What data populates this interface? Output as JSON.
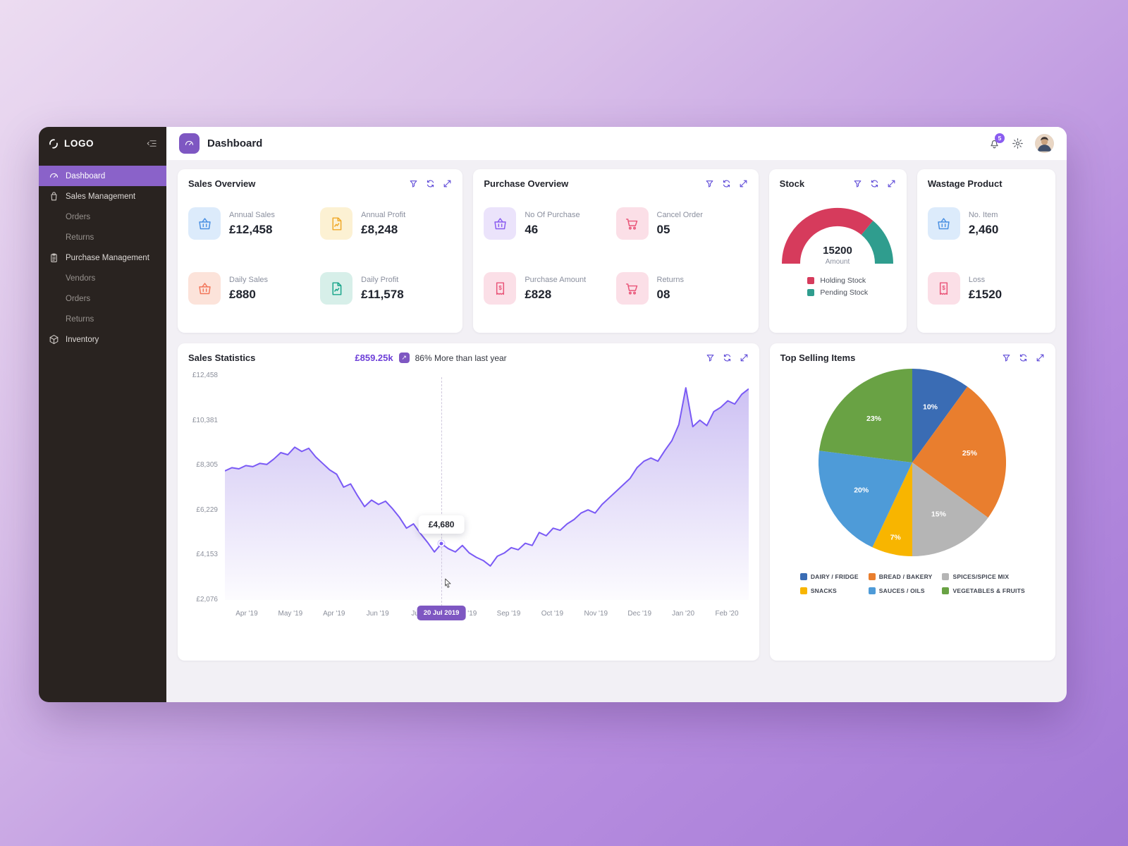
{
  "app": {
    "logo_text": "LOGO"
  },
  "sidebar": {
    "items": [
      {
        "label": "Dashboard",
        "icon": "speedometer-icon",
        "active": true
      },
      {
        "label": "Sales Management",
        "icon": "shopping-bag-icon"
      },
      {
        "label": "Orders",
        "sub": true
      },
      {
        "label": "Returns",
        "sub": true
      },
      {
        "label": "Purchase Management",
        "icon": "clipboard-icon"
      },
      {
        "label": "Vendors",
        "sub": true
      },
      {
        "label": "Orders",
        "sub": true
      },
      {
        "label": "Returns",
        "sub": true
      },
      {
        "label": "Inventory",
        "icon": "box-icon"
      }
    ]
  },
  "header": {
    "title": "Dashboard",
    "notification_count": "5"
  },
  "cards": {
    "sales_overview": {
      "title": "Sales Overview",
      "stats": [
        {
          "label": "Annual Sales",
          "value": "£12,458",
          "icon": "basket-icon",
          "tile": "blue"
        },
        {
          "label": "Annual Profit",
          "value": "£8,248",
          "icon": "document-chart-icon",
          "tile": "yellow"
        },
        {
          "label": "Daily Sales",
          "value": "£880",
          "icon": "basket-icon",
          "tile": "orange"
        },
        {
          "label": "Daily Profit",
          "value": "£11,578",
          "icon": "document-chart-icon",
          "tile": "teal"
        }
      ]
    },
    "purchase_overview": {
      "title": "Purchase Overview",
      "stats": [
        {
          "label": "No Of Purchase",
          "value": "46",
          "icon": "basket-icon",
          "tile": "purple"
        },
        {
          "label": "Cancel Order",
          "value": "05",
          "icon": "cart-icon",
          "tile": "pink"
        },
        {
          "label": "Purchase Amount",
          "value": "£828",
          "icon": "receipt-icon",
          "tile": "pink"
        },
        {
          "label": "Returns",
          "value": "08",
          "icon": "cart-icon",
          "tile": "pink"
        }
      ]
    },
    "stock": {
      "title": "Stock",
      "amount_label": "Amount"
    },
    "wastage": {
      "title": "Wastage Product",
      "stats": [
        {
          "label": "No. Item",
          "value": "2,460",
          "icon": "basket-icon",
          "tile": "blue"
        },
        {
          "label": "Loss",
          "value": "£1520",
          "icon": "receipt-icon",
          "tile": "pink"
        }
      ]
    },
    "sales_statistics": {
      "title": "Sales Statistics",
      "highlight_value": "£859.25k",
      "highlight_note": "86% More than last year"
    },
    "top_selling": {
      "title": "Top Selling Items"
    }
  },
  "chart_data": [
    {
      "type": "area",
      "title": "Sales Statistics",
      "y_ticks": [
        "£12,458",
        "£10,381",
        "£8,305",
        "£6,229",
        "£4,153",
        "£2,076"
      ],
      "x_ticks": [
        "Apr '19",
        "May '19",
        "Apr '19",
        "Jun '19",
        "Jul '19",
        "Aug '19",
        "Sep '19",
        "Oct '19",
        "Nov '19",
        "Dec '19",
        "Jan '20",
        "Feb '20"
      ],
      "ylim": [
        2076,
        12458
      ],
      "grid": false,
      "line_color": "#7a5af5",
      "values": [
        8050,
        8200,
        8150,
        8300,
        8250,
        8400,
        8350,
        8600,
        8900,
        8800,
        9150,
        8950,
        9100,
        8700,
        8400,
        8100,
        7900,
        7300,
        7450,
        6900,
        6400,
        6700,
        6500,
        6650,
        6300,
        5900,
        5400,
        5600,
        5150,
        4750,
        4300,
        4680,
        4450,
        4300,
        4600,
        4250,
        4050,
        3900,
        3650,
        4100,
        4250,
        4500,
        4400,
        4700,
        4600,
        5200,
        5050,
        5400,
        5300,
        5600,
        5800,
        6100,
        6250,
        6100,
        6500,
        6800,
        7100,
        7400,
        7700,
        8200,
        8500,
        8650,
        8500,
        9000,
        9450,
        10200,
        11900,
        10100,
        10400,
        10150,
        10800,
        11000,
        11300,
        11150,
        11600,
        11850
      ],
      "selected": {
        "index": 31,
        "value": 4680,
        "display": "£4,680",
        "label": "20 Jul 2019"
      }
    },
    {
      "type": "pie",
      "title": "Top Selling Items",
      "value_suffix": "%",
      "slices": [
        {
          "label": "DAIRY / FRIDGE",
          "value": 10,
          "color": "#3a6cb4"
        },
        {
          "label": "BREAD / BAKERY",
          "value": 25,
          "color": "#e97e2e"
        },
        {
          "label": "SPICES/SPICE MIX",
          "value": 15,
          "color": "#b5b5b5"
        },
        {
          "label": "SNACKS",
          "value": 7,
          "color": "#f8b500"
        },
        {
          "label": "SAUCES / OILS",
          "value": 20,
          "color": "#4e9bd8"
        },
        {
          "label": "VEGETABLES & FRUITS",
          "value": 23,
          "color": "#69a244"
        }
      ]
    },
    {
      "type": "gauge",
      "title": "Stock",
      "amount": "15200",
      "segments": [
        {
          "label": "Holding Stock",
          "value": 72,
          "color": "#d63b5c"
        },
        {
          "label": "Pending Stock",
          "value": 28,
          "color": "#2f9d8e"
        }
      ]
    }
  ]
}
